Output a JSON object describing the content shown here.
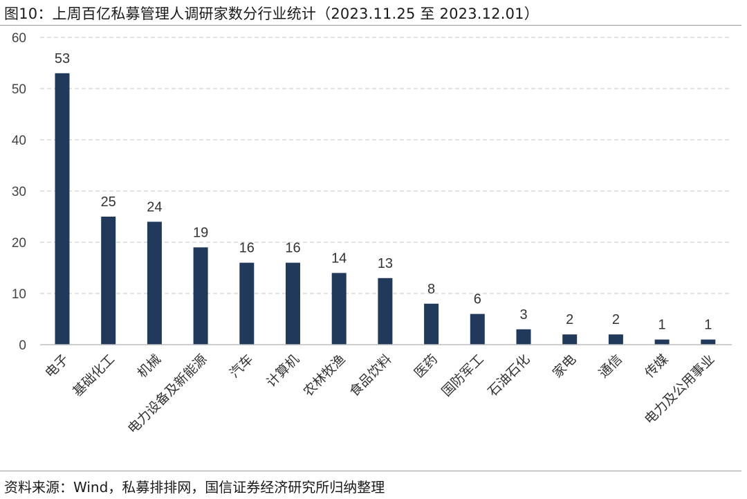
{
  "header": {
    "title": "图10：上周百亿私募管理人调研家数分行业统计（2023.11.25 至 2023.12.01）"
  },
  "footer": {
    "source": "资料来源：Wind，私募排排网，国信证券经济研究所归纳整理"
  },
  "chart_data": {
    "type": "bar",
    "title": "图10：上周百亿私募管理人调研家数分行业统计（2023.11.25 至 2023.12.01）",
    "xlabel": "",
    "ylabel": "",
    "categories": [
      "电子",
      "基础化工",
      "机械",
      "电力设备及新能源",
      "汽车",
      "计算机",
      "农林牧渔",
      "食品饮料",
      "医药",
      "国防军工",
      "石油石化",
      "家电",
      "通信",
      "传媒",
      "电力及公用事业"
    ],
    "values": [
      53,
      25,
      24,
      19,
      16,
      16,
      14,
      13,
      8,
      6,
      3,
      2,
      2,
      1,
      1
    ],
    "ylim": [
      0,
      60
    ],
    "yticks": [
      0,
      10,
      20,
      30,
      40,
      50,
      60
    ],
    "grid": true,
    "legend": "none",
    "bar_color": "#213a5c",
    "grid_color": "#d0d0d0"
  }
}
